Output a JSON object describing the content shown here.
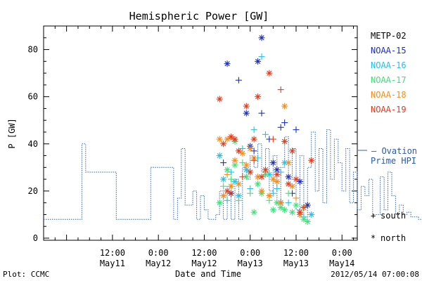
{
  "chart_data": {
    "type": "scatter",
    "title": "Hemispheric Power [GW]",
    "ylabel": "P [GW]",
    "xlabel": "Date and Time",
    "ylim": [
      0,
      90
    ],
    "yticks": [
      "0",
      "20",
      "40",
      "60",
      "80"
    ],
    "xlim": [
      "2012-05-10T18:00",
      "2012-05-14T04:00"
    ],
    "xticks": [
      {
        "time": "12:00",
        "date": "May11"
      },
      {
        "time": "0:00",
        "date": "May12"
      },
      {
        "time": "12:00",
        "date": "May12"
      },
      {
        "time": "0:00",
        "date": "May13"
      },
      {
        "time": "12:00",
        "date": "May13"
      },
      {
        "time": "0:00",
        "date": "May14"
      }
    ],
    "grid": false,
    "legend_placement": "right",
    "marker_legend": [
      {
        "symbol": "+",
        "label": "south"
      },
      {
        "symbol": "*",
        "label": "north"
      }
    ],
    "ovation_label": [
      "— Ovation",
      "Prime HPI"
    ],
    "ovation_color": "#3366aa",
    "ovation": {
      "hours": [
        0,
        10,
        10,
        11,
        11,
        19,
        19,
        28,
        28,
        34,
        34,
        35,
        35,
        36,
        36,
        37,
        37,
        39,
        39,
        40,
        40,
        41,
        41,
        42,
        42,
        43,
        43,
        45,
        45,
        46,
        46,
        47,
        47,
        48,
        48,
        49,
        49,
        50,
        50,
        51,
        51,
        52,
        52,
        53,
        53,
        54,
        54,
        55,
        55,
        56,
        56,
        57,
        57,
        58,
        58,
        59,
        59,
        60,
        60,
        61,
        61,
        62,
        62,
        63,
        63,
        64,
        64,
        65,
        65,
        66,
        66,
        67,
        67,
        68,
        68,
        69,
        69,
        70,
        70,
        71,
        71,
        72,
        72,
        73,
        73,
        74,
        74,
        75,
        75,
        76,
        76,
        77,
        77,
        78,
        78,
        79,
        79,
        80,
        80,
        81,
        81,
        82,
        82,
        83,
        83,
        84,
        84,
        85,
        85,
        86,
        86,
        88,
        88,
        89,
        89,
        90,
        90,
        91,
        91,
        92,
        92,
        93,
        93,
        94,
        94,
        95,
        95,
        96,
        96,
        98,
        98,
        100,
        100,
        106
      ],
      "values": [
        8,
        8,
        40,
        40,
        28,
        28,
        8,
        8,
        30,
        30,
        8,
        8,
        17,
        17,
        38,
        38,
        14,
        14,
        20,
        20,
        8,
        8,
        18,
        18,
        12,
        12,
        8,
        8,
        10,
        10,
        20,
        20,
        8,
        8,
        22,
        22,
        8,
        8,
        25,
        25,
        8,
        8,
        30,
        30,
        25,
        25,
        35,
        35,
        30,
        30,
        40,
        40,
        28,
        28,
        38,
        38,
        20,
        20,
        35,
        35,
        15,
        15,
        30,
        30,
        43,
        43,
        25,
        25,
        38,
        38,
        12,
        12,
        35,
        35,
        8,
        8,
        30,
        30,
        45,
        45,
        20,
        20,
        38,
        38,
        15,
        15,
        46,
        46,
        25,
        25,
        42,
        42,
        32,
        32,
        20,
        20,
        38,
        38,
        15,
        15,
        28,
        28,
        12,
        12,
        22,
        22,
        18,
        18,
        25,
        25,
        10,
        10,
        26,
        26,
        12,
        12,
        28,
        28,
        18,
        18,
        10,
        10,
        14,
        14,
        10,
        10,
        11,
        11,
        9,
        9,
        8,
        8,
        8,
        8
      ]
    },
    "series": [
      {
        "name": "METP-02",
        "color": "#000000",
        "points": []
      },
      {
        "name": "NOAA-15",
        "color": "#1c2fbe",
        "points": [
          {
            "t": 47,
            "v": 32,
            "m": "+"
          },
          {
            "t": 48,
            "v": 74,
            "m": "*"
          },
          {
            "t": 51,
            "v": 67,
            "m": "+"
          },
          {
            "t": 53,
            "v": 53,
            "m": "*"
          },
          {
            "t": 54,
            "v": 39,
            "m": "*"
          },
          {
            "t": 56,
            "v": 75,
            "m": "*"
          },
          {
            "t": 57,
            "v": 85,
            "m": "*"
          },
          {
            "t": 57,
            "v": 53,
            "m": "+"
          },
          {
            "t": 59,
            "v": 42,
            "m": "+"
          },
          {
            "t": 60,
            "v": 32,
            "m": "*"
          },
          {
            "t": 61,
            "v": 29,
            "m": "*"
          },
          {
            "t": 62,
            "v": 47,
            "m": "+"
          },
          {
            "t": 63,
            "v": 49,
            "m": "+"
          },
          {
            "t": 64,
            "v": 26,
            "m": "*"
          },
          {
            "t": 65,
            "v": 19,
            "m": "+"
          },
          {
            "t": 66,
            "v": 46,
            "m": "+"
          },
          {
            "t": 67,
            "v": 24,
            "m": "*"
          },
          {
            "t": 68,
            "v": 13,
            "m": "*"
          },
          {
            "t": 69,
            "v": 14,
            "m": "*"
          },
          {
            "t": 49,
            "v": 19,
            "m": "*"
          },
          {
            "t": 55,
            "v": 37,
            "m": "+"
          },
          {
            "t": 62,
            "v": 15,
            "m": "*"
          }
        ]
      },
      {
        "name": "NOAA-16",
        "color": "#22c1e6",
        "points": [
          {
            "t": 46,
            "v": 35,
            "m": "*"
          },
          {
            "t": 47,
            "v": 25,
            "m": "*"
          },
          {
            "t": 48,
            "v": 16,
            "m": "+"
          },
          {
            "t": 49,
            "v": 28,
            "m": "+"
          },
          {
            "t": 50,
            "v": 24,
            "m": "*"
          },
          {
            "t": 51,
            "v": 18,
            "m": "*"
          },
          {
            "t": 52,
            "v": 38,
            "m": "+"
          },
          {
            "t": 53,
            "v": 29,
            "m": "*"
          },
          {
            "t": 54,
            "v": 21,
            "m": "+"
          },
          {
            "t": 55,
            "v": 46,
            "m": "+"
          },
          {
            "t": 56,
            "v": 34,
            "m": "+"
          },
          {
            "t": 57,
            "v": 77,
            "m": "+"
          },
          {
            "t": 58,
            "v": 44,
            "m": "+"
          },
          {
            "t": 59,
            "v": 27,
            "m": "*"
          },
          {
            "t": 60,
            "v": 19,
            "m": "+"
          },
          {
            "t": 61,
            "v": 21,
            "m": "+"
          },
          {
            "t": 62,
            "v": 28,
            "m": "+"
          },
          {
            "t": 63,
            "v": 32,
            "m": "*"
          },
          {
            "t": 64,
            "v": 15,
            "m": "+"
          },
          {
            "t": 66,
            "v": 25,
            "m": "+"
          },
          {
            "t": 68,
            "v": 9,
            "m": "+"
          },
          {
            "t": 70,
            "v": 10,
            "m": "*"
          }
        ]
      },
      {
        "name": "NOAA-17",
        "color": "#3ee07a",
        "points": [
          {
            "t": 46,
            "v": 15,
            "m": "*"
          },
          {
            "t": 47,
            "v": 22,
            "m": "+"
          },
          {
            "t": 48,
            "v": 29,
            "m": "*"
          },
          {
            "t": 49,
            "v": 25,
            "m": "+"
          },
          {
            "t": 50,
            "v": 31,
            "m": "*"
          },
          {
            "t": 51,
            "v": 16,
            "m": "+"
          },
          {
            "t": 52,
            "v": 32,
            "m": "+"
          },
          {
            "t": 53,
            "v": 26,
            "m": "*"
          },
          {
            "t": 54,
            "v": 19,
            "m": "+"
          },
          {
            "t": 55,
            "v": 11,
            "m": "*"
          },
          {
            "t": 56,
            "v": 23,
            "m": "*"
          },
          {
            "t": 57,
            "v": 19,
            "m": "*"
          },
          {
            "t": 58,
            "v": 27,
            "m": "*"
          },
          {
            "t": 59,
            "v": 16,
            "m": "+"
          },
          {
            "t": 60,
            "v": 12,
            "m": "*"
          },
          {
            "t": 61,
            "v": 15,
            "m": "*"
          },
          {
            "t": 62,
            "v": 13,
            "m": "*"
          },
          {
            "t": 63,
            "v": 12,
            "m": "*"
          },
          {
            "t": 64,
            "v": 19,
            "m": "+"
          },
          {
            "t": 65,
            "v": 11,
            "m": "*"
          },
          {
            "t": 66,
            "v": 14,
            "m": "*"
          },
          {
            "t": 67,
            "v": 10,
            "m": "*"
          },
          {
            "t": 68,
            "v": 8,
            "m": "*"
          },
          {
            "t": 69,
            "v": 7,
            "m": "*"
          },
          {
            "t": 50,
            "v": 41,
            "m": "*"
          }
        ]
      },
      {
        "name": "NOAA-18",
        "color": "#f28c1c",
        "points": [
          {
            "t": 46,
            "v": 42,
            "m": "*"
          },
          {
            "t": 47,
            "v": 18,
            "m": "*"
          },
          {
            "t": 48,
            "v": 27,
            "m": "+"
          },
          {
            "t": 49,
            "v": 22,
            "m": "*"
          },
          {
            "t": 50,
            "v": 33,
            "m": "*"
          },
          {
            "t": 51,
            "v": 23,
            "m": "*"
          },
          {
            "t": 52,
            "v": 36,
            "m": "*"
          },
          {
            "t": 53,
            "v": 31,
            "m": "*"
          },
          {
            "t": 54,
            "v": 38,
            "m": "*"
          },
          {
            "t": 55,
            "v": 34,
            "m": "*"
          },
          {
            "t": 56,
            "v": 26,
            "m": "*"
          },
          {
            "t": 57,
            "v": 20,
            "m": "*"
          },
          {
            "t": 58,
            "v": 28,
            "m": "+"
          },
          {
            "t": 59,
            "v": 18,
            "m": "*"
          },
          {
            "t": 60,
            "v": 25,
            "m": "*"
          },
          {
            "t": 61,
            "v": 24,
            "m": "*"
          },
          {
            "t": 62,
            "v": 15,
            "m": "*"
          },
          {
            "t": 63,
            "v": 56,
            "m": "*"
          },
          {
            "t": 64,
            "v": 32,
            "m": "*"
          },
          {
            "t": 65,
            "v": 22,
            "m": "*"
          },
          {
            "t": 66,
            "v": 17,
            "m": "+"
          },
          {
            "t": 67,
            "v": 10,
            "m": "*"
          },
          {
            "t": 68,
            "v": 13,
            "m": "*"
          },
          {
            "t": 48,
            "v": 42,
            "m": "*"
          }
        ]
      },
      {
        "name": "NOAA-19",
        "color": "#e03a1c",
        "points": [
          {
            "t": 46,
            "v": 59,
            "m": "*"
          },
          {
            "t": 47,
            "v": 40,
            "m": "*"
          },
          {
            "t": 48,
            "v": 20,
            "m": "*"
          },
          {
            "t": 49,
            "v": 43,
            "m": "*"
          },
          {
            "t": 50,
            "v": 42,
            "m": "*"
          },
          {
            "t": 51,
            "v": 37,
            "m": "*"
          },
          {
            "t": 52,
            "v": 26,
            "m": "+"
          },
          {
            "t": 53,
            "v": 56,
            "m": "*"
          },
          {
            "t": 54,
            "v": 28,
            "m": "*"
          },
          {
            "t": 55,
            "v": 42,
            "m": "*"
          },
          {
            "t": 56,
            "v": 60,
            "m": "*"
          },
          {
            "t": 57,
            "v": 26,
            "m": "*"
          },
          {
            "t": 58,
            "v": 29,
            "m": "*"
          },
          {
            "t": 59,
            "v": 70,
            "m": "*"
          },
          {
            "t": 60,
            "v": 42,
            "m": "+"
          },
          {
            "t": 61,
            "v": 27,
            "m": "*"
          },
          {
            "t": 62,
            "v": 63,
            "m": "+"
          },
          {
            "t": 63,
            "v": 41,
            "m": "*"
          },
          {
            "t": 64,
            "v": 23,
            "m": "*"
          },
          {
            "t": 65,
            "v": 37,
            "m": "*"
          },
          {
            "t": 66,
            "v": 25,
            "m": "*"
          },
          {
            "t": 67,
            "v": 11,
            "m": "*"
          },
          {
            "t": 68,
            "v": 13,
            "m": "+"
          },
          {
            "t": 70,
            "v": 33,
            "m": "*"
          },
          {
            "t": 49,
            "v": 19,
            "m": "+"
          },
          {
            "t": 55,
            "v": 33,
            "m": "+"
          }
        ]
      }
    ]
  },
  "footer": {
    "left": "Plot: CCMC",
    "right": "2012/05/14 07:00:08"
  }
}
